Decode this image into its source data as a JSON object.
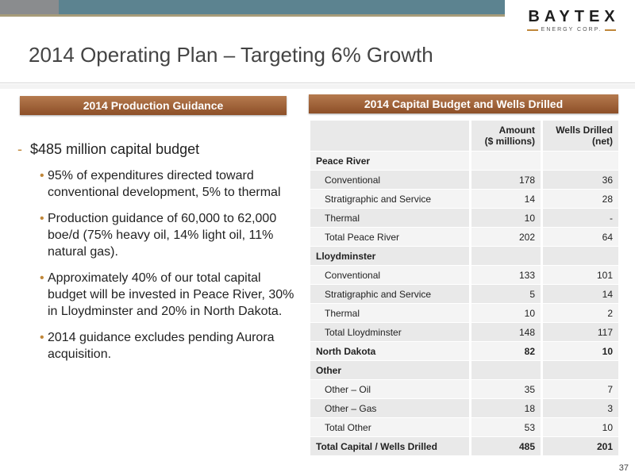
{
  "logo": {
    "word": "BAYTEX",
    "sub": "ENERGY CORP."
  },
  "title": "2014 Operating Plan – Targeting 6% Growth",
  "left_panel": {
    "header": "2014 Production Guidance",
    "main_bullet": "$485 million capital budget",
    "sub_bullets": [
      "95% of expenditures directed toward conventional development, 5% to thermal",
      "Production guidance of 60,000 to 62,000 boe/d (75% heavy oil, 14% light oil, 11% natural gas).",
      "Approximately 40% of our total capital budget will be invested in Peace River, 30% in Lloydminster and 20% in North Dakota.",
      "2014 guidance excludes pending Aurora acquisition."
    ]
  },
  "right_panel": {
    "header": "2014 Capital Budget and Wells Drilled",
    "col_amount_1": "Amount",
    "col_amount_2": "($ millions)",
    "col_wells_1": "Wells Drilled",
    "col_wells_2": "(net)",
    "rows": [
      {
        "label": "Peace River",
        "amount": "",
        "wells": ""
      },
      {
        "label": "Conventional",
        "amount": "178",
        "wells": "36"
      },
      {
        "label": "Stratigraphic and Service",
        "amount": "14",
        "wells": "28"
      },
      {
        "label": "Thermal",
        "amount": "10",
        "wells": "-"
      },
      {
        "label": "Total Peace River",
        "amount": "202",
        "wells": "64"
      },
      {
        "label": "Lloydminster",
        "amount": "",
        "wells": ""
      },
      {
        "label": "Conventional",
        "amount": "133",
        "wells": "101"
      },
      {
        "label": "Stratigraphic and Service",
        "amount": "5",
        "wells": "14"
      },
      {
        "label": "Thermal",
        "amount": "10",
        "wells": "2"
      },
      {
        "label": "Total Lloydminster",
        "amount": "148",
        "wells": "117"
      },
      {
        "label": "North Dakota",
        "amount": "82",
        "wells": "10"
      },
      {
        "label": "Other",
        "amount": "",
        "wells": ""
      },
      {
        "label": "Other – Oil",
        "amount": "35",
        "wells": "7"
      },
      {
        "label": "Other – Gas",
        "amount": "18",
        "wells": "3"
      },
      {
        "label": "Total Other",
        "amount": "53",
        "wells": "10"
      },
      {
        "label": "Total Capital / Wells Drilled",
        "amount": "485",
        "wells": "201"
      }
    ]
  },
  "page_number": "37"
}
